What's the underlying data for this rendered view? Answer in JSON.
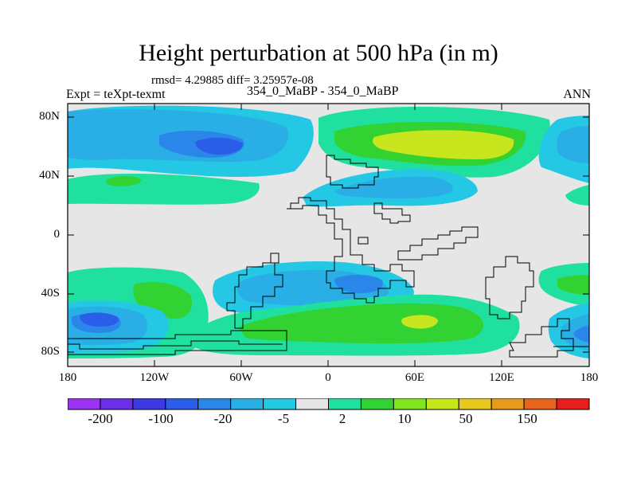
{
  "header": {
    "title": "Height perturbation at 500 hPa (in m)",
    "stats": "rmsd= 4.29885 diff= 3.25957e-08",
    "experiment": "Expt = teXpt-texmt",
    "comparison": "354_0_MaBP - 354_0_MaBP",
    "season": "ANN"
  },
  "axes": {
    "lat_ticks": [
      "80N",
      "40N",
      "0",
      "40S",
      "80S"
    ],
    "lon_ticks": [
      "180",
      "120W",
      "60W",
      "0",
      "60E",
      "120E",
      "180"
    ]
  },
  "colorbar": {
    "colors": [
      "#9a32f0",
      "#6a2fe6",
      "#3c3ae0",
      "#2a5ee8",
      "#2a86e8",
      "#2aaee6",
      "#24c8e4",
      "#e6e6e6",
      "#20e0a0",
      "#32d232",
      "#7ee61e",
      "#c8e61e",
      "#e6c81e",
      "#e69b1e",
      "#e6641e",
      "#e61e1e"
    ],
    "labels": [
      "-200",
      "-100",
      "-20",
      "-5",
      "2",
      "10",
      "50",
      "150"
    ]
  },
  "colors": {
    "background": "#e6e6e6",
    "coastline": "#000000"
  }
}
